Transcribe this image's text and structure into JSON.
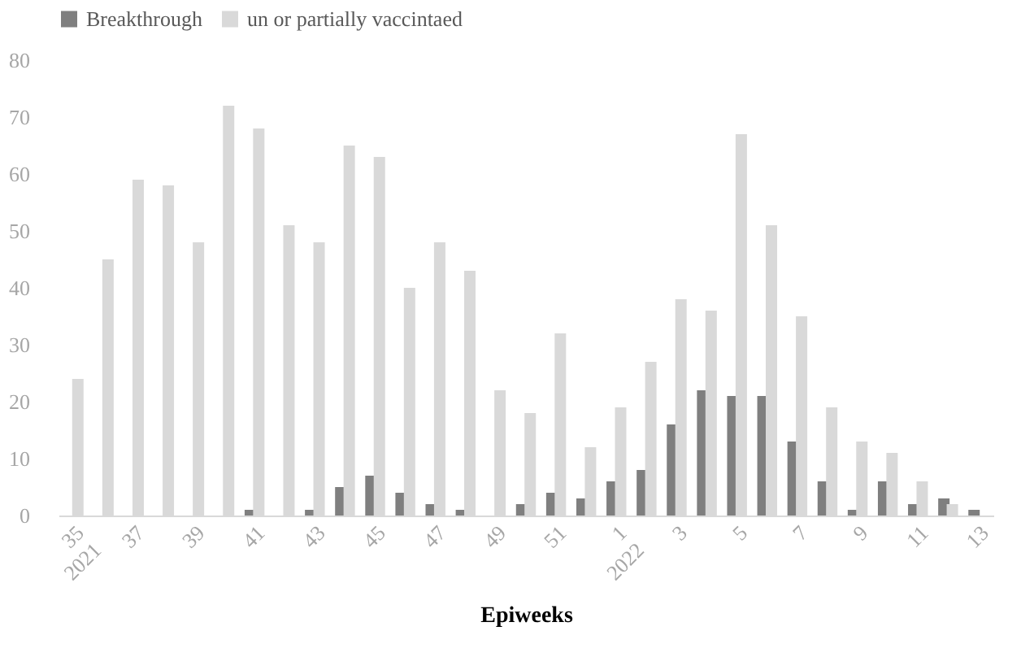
{
  "chart_data": {
    "type": "bar",
    "xlabel": "Epiweeks",
    "categories": [
      "35\n2021",
      null,
      "37",
      null,
      "39",
      null,
      "41",
      null,
      "43",
      null,
      "45",
      null,
      "47",
      null,
      "49",
      null,
      "51",
      null,
      "1\n2022",
      null,
      "3",
      null,
      "5",
      null,
      "7",
      null,
      "9",
      null,
      "11",
      null,
      "13"
    ],
    "series": [
      {
        "name": "Breakthrough",
        "color": "#7f7f7f",
        "values": [
          0,
          0,
          0,
          0,
          0,
          0,
          1,
          0,
          1,
          5,
          7,
          4,
          2,
          1,
          0,
          2,
          4,
          3,
          6,
          8,
          16,
          22,
          21,
          21,
          13,
          6,
          1,
          6,
          2,
          3,
          1
        ]
      },
      {
        "name": "un or partially vaccintaed",
        "color": "#d9d9d9",
        "values": [
          24,
          45,
          59,
          58,
          48,
          72,
          68,
          51,
          48,
          65,
          63,
          40,
          48,
          43,
          22,
          18,
          32,
          12,
          19,
          27,
          38,
          36,
          67,
          51,
          35,
          19,
          13,
          11,
          6,
          2,
          0
        ]
      }
    ],
    "ylim": [
      0,
      80
    ],
    "yticks": [
      0,
      10,
      20,
      30,
      40,
      50,
      60,
      70,
      80
    ],
    "grid": false,
    "legend": "top"
  }
}
